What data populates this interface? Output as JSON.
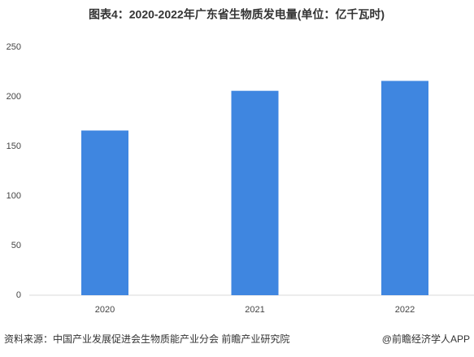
{
  "chart_data": {
    "type": "bar",
    "title": "图表4：2020-2022年广东省生物质发电量(单位：亿千瓦时)",
    "categories": [
      "2020",
      "2021",
      "2022"
    ],
    "values": [
      166,
      206,
      216
    ],
    "color": "#3f86e0",
    "ylim": [
      0,
      250
    ],
    "yticks": [
      0,
      50,
      100,
      150,
      200,
      250
    ],
    "grid": false,
    "source": "资料来源：中国产业发展促进会生物质能产业分会 前瞻产业研究院",
    "credit": "@前瞻经济学人APP"
  }
}
